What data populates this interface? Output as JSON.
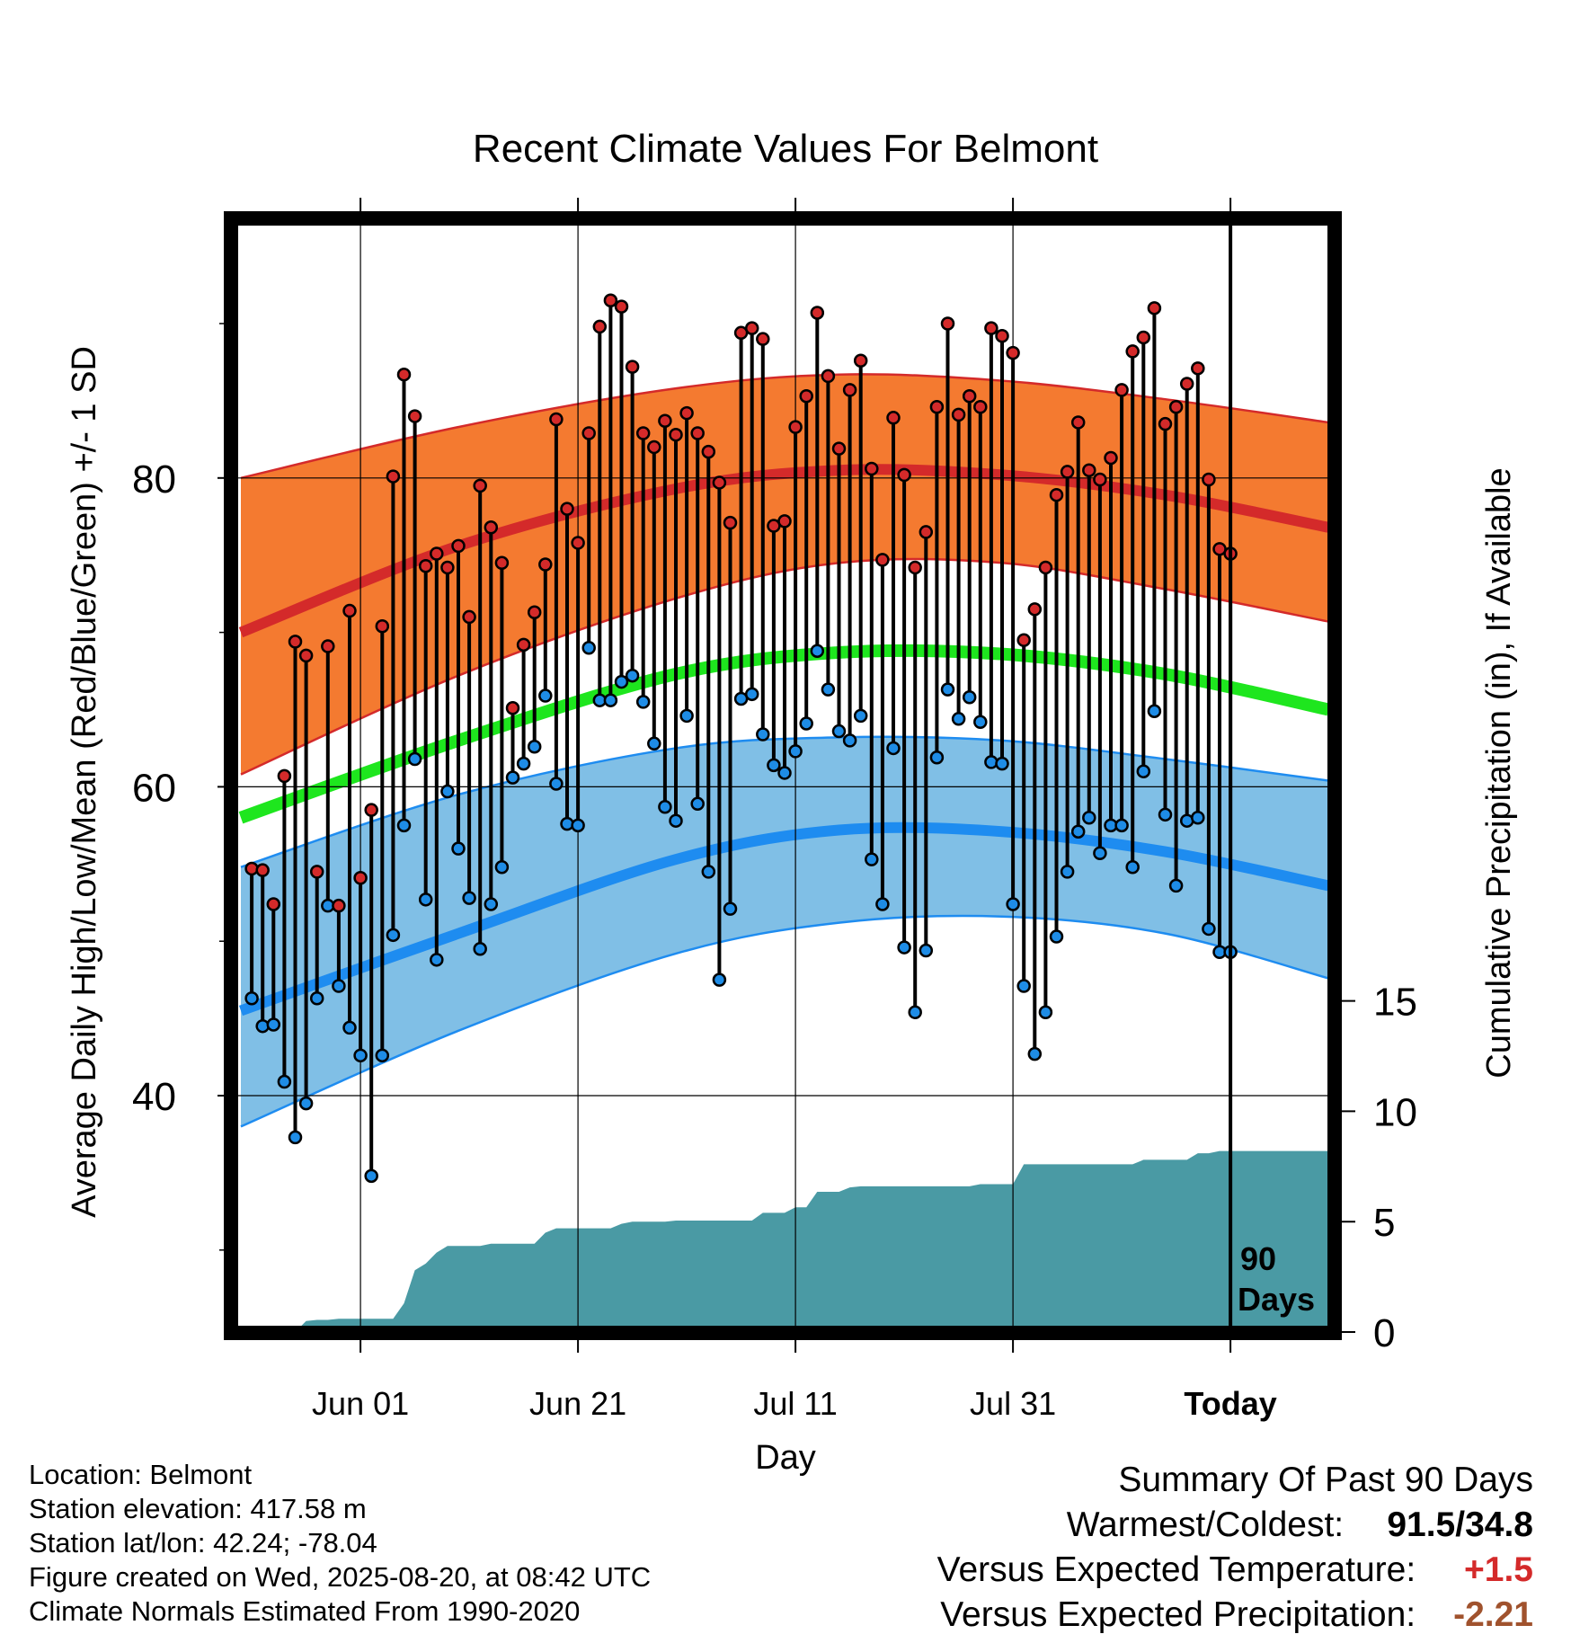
{
  "title": "Recent Climate Values For Belmont",
  "y_label_left": "Average Daily High/Low/Mean (Red/Blue/Green) +/- 1 SD",
  "y_label_right": "Cumulative Precipitation (in), If Available",
  "x_label": "Day",
  "today_label": "Today",
  "days_label_line1": "90",
  "days_label_line2": "Days",
  "info": {
    "location": "Location: Belmont",
    "elevation": "Station elevation: 417.58 m",
    "latlon": "Station lat/lon: 42.24; -78.04",
    "created": "Figure created on Wed, 2025-08-20, at 08:42 UTC",
    "normals": "Climate Normals Estimated From 1990-2020"
  },
  "summary": {
    "heading": "Summary Of Past 90 Days",
    "warm_cold_label": "Warmest/Coldest:",
    "warm_cold_value": "91.5/34.8",
    "temp_label": "Versus Expected Temperature:",
    "temp_value": "+1.5",
    "precip_label": "Versus Expected Precipitation:",
    "precip_value": "-2.21"
  },
  "colors": {
    "high_band": "#f47a30",
    "high_line": "#d42a2a",
    "low_band": "#80bfe6",
    "low_line": "#1e8cf0",
    "mean_line": "#1ee61e",
    "precip_fill": "#4a9aa4",
    "high_marker": "#d42a2a",
    "low_marker": "#1e8ce6",
    "temp_value": "#d42a2a",
    "precip_value": "#a0522d"
  },
  "chart_data": {
    "type": "line",
    "x_axis": {
      "tick_labels": [
        "Jun 01",
        "Jun 21",
        "Jul 11",
        "Jul 31",
        "Today"
      ],
      "tick_day_index": [
        11,
        31,
        51,
        71,
        91
      ]
    },
    "y_left": {
      "min": 25,
      "max": 96,
      "ticks": [
        40,
        60,
        80
      ]
    },
    "y_right": {
      "min": 0,
      "max": 15,
      "ticks": [
        0,
        5,
        10,
        15
      ]
    },
    "normals": {
      "day_index": [
        0,
        20,
        40,
        55,
        70,
        85,
        100
      ],
      "high_mean": [
        70.0,
        75.6,
        79.3,
        80.5,
        80.2,
        78.9,
        76.8
      ],
      "high_sd_upper": [
        80.0,
        83.3,
        85.8,
        86.7,
        86.3,
        85.1,
        83.6
      ],
      "high_sd_lower": [
        60.8,
        67.2,
        72.2,
        74.5,
        74.5,
        72.8,
        70.7
      ],
      "mean": [
        58.0,
        63.0,
        67.3,
        68.7,
        68.6,
        67.3,
        65.0
      ],
      "low_mean": [
        45.5,
        50.5,
        55.3,
        57.2,
        57.1,
        55.8,
        53.6
      ],
      "low_sd_upper": [
        54.8,
        59.5,
        62.5,
        63.2,
        63.0,
        61.8,
        60.4
      ],
      "low_sd_lower": [
        38.0,
        44.2,
        49.2,
        51.2,
        51.6,
        50.5,
        47.6
      ]
    },
    "series": [
      {
        "name": "High",
        "values": [
          54.7,
          54.6,
          52.4,
          60.7,
          69.4,
          68.5,
          54.5,
          69.1,
          52.3,
          71.4,
          54.1,
          58.5,
          70.4,
          80.1,
          86.7,
          84.0,
          74.3,
          75.1,
          74.2,
          75.6,
          71.0,
          79.5,
          76.8,
          74.5,
          65.1,
          69.2,
          71.3,
          74.4,
          83.8,
          78.0,
          75.8,
          82.9,
          89.8,
          91.5,
          91.1,
          87.2,
          82.9,
          82.0,
          83.7,
          82.8,
          84.2,
          82.9,
          81.7,
          79.7,
          77.1,
          89.4,
          89.7,
          89.0,
          76.9,
          77.2,
          83.3,
          85.3,
          90.7,
          86.6,
          81.9,
          85.7,
          87.6,
          80.6,
          74.7,
          83.9,
          80.2,
          74.2,
          76.5,
          84.6,
          90.0,
          84.1,
          85.3,
          84.6,
          89.7,
          89.2,
          88.1,
          69.5,
          71.5,
          74.2,
          78.9,
          80.4,
          83.6,
          80.5,
          79.9,
          81.3,
          85.7,
          88.2,
          89.1,
          91.0,
          83.5,
          84.6,
          86.1,
          87.1,
          79.9,
          75.4,
          75.1
        ]
      },
      {
        "name": "Low",
        "values": [
          46.3,
          44.5,
          44.6,
          40.9,
          37.3,
          39.5,
          46.3,
          52.3,
          47.1,
          44.4,
          42.6,
          34.8,
          42.6,
          50.4,
          57.5,
          61.8,
          52.7,
          48.8,
          59.7,
          56.0,
          52.8,
          49.5,
          52.4,
          54.8,
          60.6,
          61.5,
          62.6,
          65.9,
          60.2,
          57.6,
          57.5,
          69.0,
          65.6,
          65.6,
          66.8,
          67.2,
          65.5,
          62.8,
          58.7,
          57.8,
          64.6,
          58.9,
          54.5,
          47.5,
          52.1,
          65.7,
          66.0,
          63.4,
          61.4,
          60.9,
          62.3,
          64.1,
          68.8,
          66.3,
          63.6,
          63.0,
          64.6,
          55.3,
          52.4,
          62.5,
          49.6,
          45.4,
          49.4,
          61.9,
          66.3,
          64.4,
          65.8,
          64.2,
          61.6,
          61.5,
          52.4,
          47.1,
          42.7,
          45.4,
          50.3,
          54.5,
          57.1,
          58.0,
          55.7,
          57.5,
          57.5,
          54.8,
          61.0,
          64.9,
          58.2,
          53.6,
          57.8,
          58.0,
          50.8,
          49.3,
          49.3
        ]
      },
      {
        "name": "Cumulative Precipitation",
        "days": [
          0,
          5,
          6,
          7,
          8,
          9,
          10,
          11,
          12,
          13,
          14,
          15,
          16,
          17,
          18,
          19,
          20,
          21,
          22,
          23,
          24,
          25,
          26,
          27,
          28,
          29,
          30,
          31,
          33,
          34,
          35,
          36,
          37,
          38,
          39,
          40,
          41,
          42,
          43,
          44,
          45,
          46,
          47,
          48,
          49,
          50,
          51,
          52,
          53,
          54,
          55,
          56,
          57,
          58,
          59,
          60,
          61,
          62,
          63,
          64,
          65,
          66,
          67,
          68,
          69,
          70,
          71,
          72,
          73,
          74,
          75,
          76,
          77,
          78,
          79,
          80,
          81,
          82,
          83,
          84,
          85,
          86,
          87,
          88,
          89,
          90,
          91,
          100
        ],
        "values": [
          0,
          0,
          0.5,
          0.55,
          0.55,
          0.6,
          0.6,
          0.6,
          0.6,
          0.6,
          0.6,
          1.3,
          2.8,
          3.1,
          3.6,
          3.9,
          3.9,
          3.9,
          3.9,
          4.0,
          4.0,
          4.0,
          4.0,
          4.0,
          4.5,
          4.7,
          4.7,
          4.7,
          4.7,
          4.7,
          4.9,
          5.0,
          5.0,
          5.0,
          5.0,
          5.05,
          5.05,
          5.05,
          5.05,
          5.05,
          5.05,
          5.05,
          5.05,
          5.4,
          5.4,
          5.4,
          5.65,
          5.65,
          6.35,
          6.35,
          6.35,
          6.55,
          6.6,
          6.6,
          6.6,
          6.6,
          6.6,
          6.6,
          6.6,
          6.6,
          6.6,
          6.6,
          6.6,
          6.7,
          6.7,
          6.7,
          6.7,
          7.6,
          7.6,
          7.6,
          7.6,
          7.6,
          7.6,
          7.6,
          7.6,
          7.6,
          7.6,
          7.6,
          7.8,
          7.8,
          7.8,
          7.8,
          7.8,
          8.1,
          8.1,
          8.2,
          8.2,
          8.2
        ]
      }
    ]
  }
}
